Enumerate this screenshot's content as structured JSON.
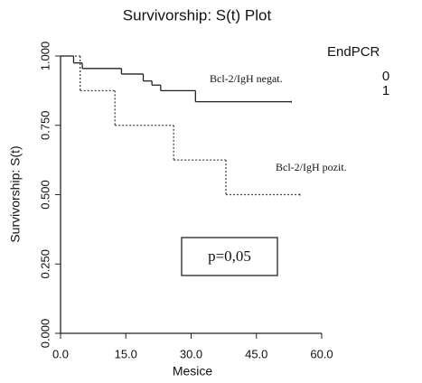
{
  "chart_data": {
    "type": "step",
    "title": "Survivorship: S(t) Plot",
    "x_label": "Mesice",
    "y_label": "Survivorship: S(t)",
    "legend_title": "EndPCR",
    "annotations": [
      "Bcl-2/IgH negat.",
      "Bcl-2/IgH pozit.",
      "p=0,05"
    ],
    "xlim": [
      0,
      60
    ],
    "xticks": [
      {
        "value": 0,
        "label": "0.0"
      },
      {
        "value": 15,
        "label": "15.0"
      },
      {
        "value": 30,
        "label": "30.0"
      },
      {
        "value": 45,
        "label": "45.0"
      },
      {
        "value": 60,
        "label": "60.0"
      }
    ],
    "ylim": [
      0,
      1
    ],
    "yticks": [
      {
        "value": 0,
        "label": "0.000"
      },
      {
        "value": 0.25,
        "label": "0.250"
      },
      {
        "value": 0.5,
        "label": "0.500"
      },
      {
        "value": 0.75,
        "label": "0.750"
      },
      {
        "value": 1,
        "label": "1.000"
      }
    ],
    "series": [
      {
        "name": "0",
        "color": "#222222",
        "dash": false,
        "x": [
          0,
          3,
          5,
          14,
          19,
          21,
          23,
          31,
          53
        ],
        "values": [
          1,
          0.975,
          0.955,
          0.935,
          0.91,
          0.895,
          0.875,
          0.835,
          0.835
        ]
      },
      {
        "name": "1",
        "color": "#444444",
        "dash": true,
        "x": [
          0,
          4.5,
          12.5,
          26,
          38,
          55
        ],
        "values": [
          1,
          0.875,
          0.75,
          0.625,
          0.5,
          0.5
        ]
      }
    ]
  }
}
